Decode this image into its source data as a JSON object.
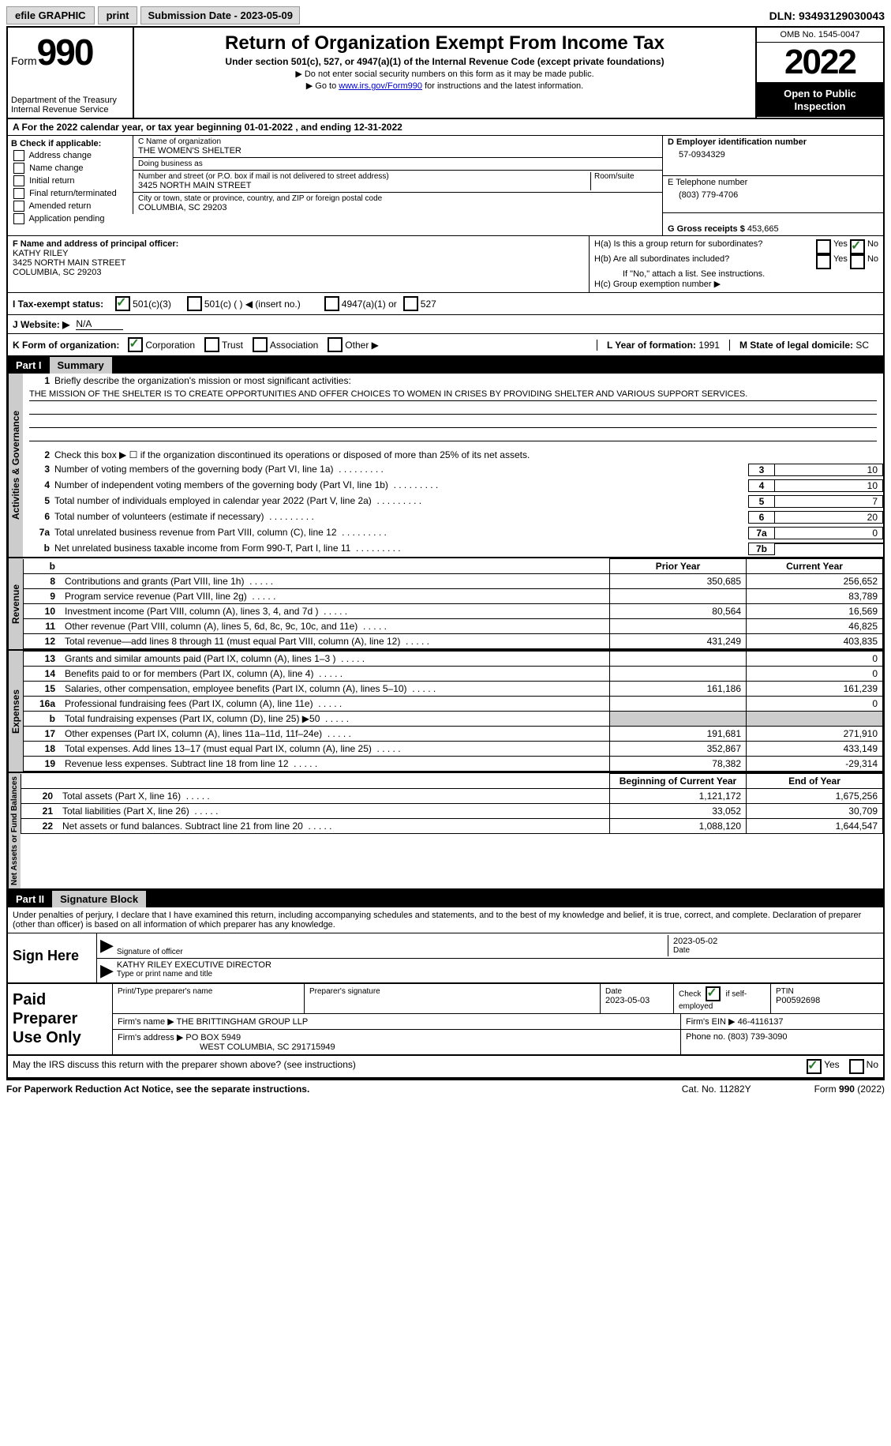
{
  "topbar": {
    "efile": "efile GRAPHIC",
    "print": "print",
    "submission_label": "Submission Date - ",
    "submission_date": "2023-05-09",
    "dln_label": "DLN: ",
    "dln": "93493129030043"
  },
  "header": {
    "form_label": "Form",
    "form_num": "990",
    "dept": "Department of the Treasury Internal Revenue Service",
    "title": "Return of Organization Exempt From Income Tax",
    "subtitle": "Under section 501(c), 527, or 4947(a)(1) of the Internal Revenue Code (except private foundations)",
    "note1": "▶ Do not enter social security numbers on this form as it may be made public.",
    "note2_pre": "▶ Go to ",
    "note2_link": "www.irs.gov/Form990",
    "note2_post": " for instructions and the latest information.",
    "omb": "OMB No. 1545-0047",
    "year": "2022",
    "open": "Open to Public Inspection"
  },
  "row_a": {
    "text_pre": "A For the 2022 calendar year, or tax year beginning ",
    "begin": "01-01-2022",
    "mid": " , and ending ",
    "end": "12-31-2022"
  },
  "section_b": {
    "label": "B Check if applicable:",
    "opts": [
      "Address change",
      "Name change",
      "Initial return",
      "Final return/terminated",
      "Amended return",
      "Application pending"
    ]
  },
  "section_c": {
    "name_label": "C Name of organization",
    "name": "THE WOMEN'S SHELTER",
    "dba_label": "Doing business as",
    "dba": "",
    "street_label": "Number and street (or P.O. box if mail is not delivered to street address)",
    "room_label": "Room/suite",
    "street": "3425 NORTH MAIN STREET",
    "city_label": "City or town, state or province, country, and ZIP or foreign postal code",
    "city": "COLUMBIA, SC  29203"
  },
  "section_d": {
    "label": "D Employer identification number",
    "ein": "57-0934329"
  },
  "section_e": {
    "label": "E Telephone number",
    "phone": "(803) 779-4706"
  },
  "section_g": {
    "label": "G Gross receipts $ ",
    "amount": "453,665"
  },
  "section_f": {
    "label": "F Name and address of principal officer:",
    "name": "KATHY RILEY",
    "addr1": "3425 NORTH MAIN STREET",
    "addr2": "COLUMBIA, SC  29203"
  },
  "section_h": {
    "a": "H(a)  Is this a group return for subordinates?",
    "b": "H(b)  Are all subordinates included?",
    "b_note": "If \"No,\" attach a list. See instructions.",
    "c": "H(c)  Group exemption number ▶",
    "yes": "Yes",
    "no": "No"
  },
  "row_i": {
    "label": "I  Tax-exempt status:",
    "opt1": "501(c)(3)",
    "opt2": "501(c) (    ) ◀ (insert no.)",
    "opt3": "4947(a)(1) or",
    "opt4": "527"
  },
  "row_j": {
    "label": "J  Website: ▶",
    "value": "N/A"
  },
  "row_k": {
    "label": "K Form of organization:",
    "opts": [
      "Corporation",
      "Trust",
      "Association",
      "Other ▶"
    ],
    "l_label": "L Year of formation: ",
    "l_value": "1991",
    "m_label": "M State of legal domicile: ",
    "m_value": "SC"
  },
  "part1": {
    "num": "Part I",
    "title": "Summary",
    "side_ag": "Activities & Governance",
    "side_rev": "Revenue",
    "side_exp": "Expenses",
    "side_na": "Net Assets or Fund Balances",
    "line1_label": "Briefly describe the organization's mission or most significant activities:",
    "mission": "THE MISSION OF THE SHELTER IS TO CREATE OPPORTUNITIES AND OFFER CHOICES TO WOMEN IN CRISES BY PROVIDING SHELTER AND VARIOUS SUPPORT SERVICES.",
    "line2": "Check this box ▶ ☐ if the organization discontinued its operations or disposed of more than 25% of its net assets.",
    "lines_ag": [
      {
        "n": "3",
        "t": "Number of voting members of the governing body (Part VI, line 1a)",
        "bn": "3",
        "v": "10"
      },
      {
        "n": "4",
        "t": "Number of independent voting members of the governing body (Part VI, line 1b)",
        "bn": "4",
        "v": "10"
      },
      {
        "n": "5",
        "t": "Total number of individuals employed in calendar year 2022 (Part V, line 2a)",
        "bn": "5",
        "v": "7"
      },
      {
        "n": "6",
        "t": "Total number of volunteers (estimate if necessary)",
        "bn": "6",
        "v": "20"
      },
      {
        "n": "7a",
        "t": "Total unrelated business revenue from Part VIII, column (C), line 12",
        "bn": "7a",
        "v": "0"
      },
      {
        "n": "b",
        "t": "Net unrelated business taxable income from Form 990-T, Part I, line 11",
        "bn": "7b",
        "v": ""
      }
    ],
    "col_prior": "Prior Year",
    "col_current": "Current Year",
    "lines_rev": [
      {
        "n": "8",
        "t": "Contributions and grants (Part VIII, line 1h)",
        "p": "350,685",
        "c": "256,652"
      },
      {
        "n": "9",
        "t": "Program service revenue (Part VIII, line 2g)",
        "p": "",
        "c": "83,789"
      },
      {
        "n": "10",
        "t": "Investment income (Part VIII, column (A), lines 3, 4, and 7d )",
        "p": "80,564",
        "c": "16,569"
      },
      {
        "n": "11",
        "t": "Other revenue (Part VIII, column (A), lines 5, 6d, 8c, 9c, 10c, and 11e)",
        "p": "",
        "c": "46,825"
      },
      {
        "n": "12",
        "t": "Total revenue—add lines 8 through 11 (must equal Part VIII, column (A), line 12)",
        "p": "431,249",
        "c": "403,835"
      }
    ],
    "lines_exp": [
      {
        "n": "13",
        "t": "Grants and similar amounts paid (Part IX, column (A), lines 1–3 )",
        "p": "",
        "c": "0"
      },
      {
        "n": "14",
        "t": "Benefits paid to or for members (Part IX, column (A), line 4)",
        "p": "",
        "c": "0"
      },
      {
        "n": "15",
        "t": "Salaries, other compensation, employee benefits (Part IX, column (A), lines 5–10)",
        "p": "161,186",
        "c": "161,239"
      },
      {
        "n": "16a",
        "t": "Professional fundraising fees (Part IX, column (A), line 11e)",
        "p": "",
        "c": "0"
      },
      {
        "n": "b",
        "t": "Total fundraising expenses (Part IX, column (D), line 25) ▶50",
        "p": "GRAY",
        "c": "GRAY"
      },
      {
        "n": "17",
        "t": "Other expenses (Part IX, column (A), lines 11a–11d, 11f–24e)",
        "p": "191,681",
        "c": "271,910"
      },
      {
        "n": "18",
        "t": "Total expenses. Add lines 13–17 (must equal Part IX, column (A), line 25)",
        "p": "352,867",
        "c": "433,149"
      },
      {
        "n": "19",
        "t": "Revenue less expenses. Subtract line 18 from line 12",
        "p": "78,382",
        "c": "-29,314"
      }
    ],
    "col_begin": "Beginning of Current Year",
    "col_end": "End of Year",
    "lines_na": [
      {
        "n": "20",
        "t": "Total assets (Part X, line 16)",
        "p": "1,121,172",
        "c": "1,675,256"
      },
      {
        "n": "21",
        "t": "Total liabilities (Part X, line 26)",
        "p": "33,052",
        "c": "30,709"
      },
      {
        "n": "22",
        "t": "Net assets or fund balances. Subtract line 21 from line 20",
        "p": "1,088,120",
        "c": "1,644,547"
      }
    ]
  },
  "part2": {
    "num": "Part II",
    "title": "Signature Block",
    "perjury": "Under penalties of perjury, I declare that I have examined this return, including accompanying schedules and statements, and to the best of my knowledge and belief, it is true, correct, and complete. Declaration of preparer (other than officer) is based on all information of which preparer has any knowledge.",
    "sign_here": "Sign Here",
    "sig_officer": "Signature of officer",
    "sig_date": "2023-05-02",
    "date_label": "Date",
    "sig_name": "KATHY RILEY  EXECUTIVE DIRECTOR",
    "sig_name_label": "Type or print name and title"
  },
  "paid": {
    "title": "Paid Preparer Use Only",
    "print_label": "Print/Type preparer's name",
    "sig_label": "Preparer's signature",
    "date_label": "Date",
    "date": "2023-05-03",
    "check_label": "Check",
    "check_self": "if self-employed",
    "ptin_label": "PTIN",
    "ptin": "P00592698",
    "firm_name_label": "Firm's name    ▶",
    "firm_name": "THE BRITTINGHAM GROUP LLP",
    "firm_ein_label": "Firm's EIN ▶",
    "firm_ein": "46-4116137",
    "firm_addr_label": "Firm's address ▶",
    "firm_addr1": "PO BOX 5949",
    "firm_addr2": "WEST COLUMBIA, SC  291715949",
    "phone_label": "Phone no. ",
    "phone": "(803) 739-3090"
  },
  "discuss": {
    "text": "May the IRS discuss this return with the preparer shown above? (see instructions)",
    "yes": "Yes",
    "no": "No"
  },
  "footer": {
    "left": "For Paperwork Reduction Act Notice, see the separate instructions.",
    "mid": "Cat. No. 11282Y",
    "right": "Form 990 (2022)"
  }
}
